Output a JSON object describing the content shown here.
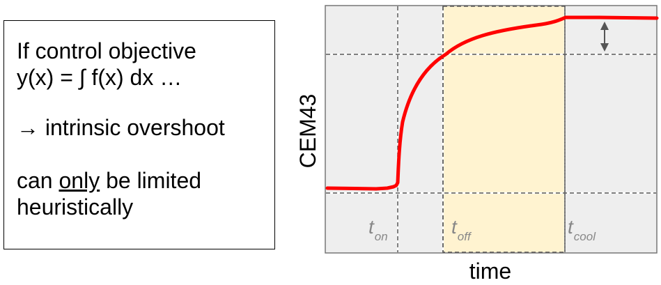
{
  "textbox": {
    "line1": "If control objective",
    "line2": "y(x) = ∫ f(x) dx …",
    "line3": "→ intrinsic overshoot",
    "line4_pre": "can ",
    "line4_underlined": "only",
    "line4_post": " be limited",
    "line5": "heuristically"
  },
  "plot": {
    "ylabel": "CEM43",
    "xlabel": "time",
    "markers": [
      {
        "main": "t",
        "sub": "on"
      },
      {
        "main": "t",
        "sub": "off"
      },
      {
        "main": "t",
        "sub": "cool"
      }
    ],
    "colors": {
      "curve": "#ff0000",
      "highlight": "#fff3d0",
      "background": "#eeeeee",
      "dashed": "#555555"
    }
  }
}
